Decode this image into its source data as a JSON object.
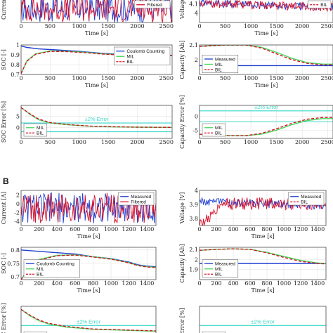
{
  "section_labels": [
    {
      "text": "B"
    }
  ],
  "colors": {
    "measured": "#1f3fd0",
    "filtered_red": "#d8102a",
    "mil": "#49d65a",
    "bil": "#d8102a",
    "error_band": "#35d6c8",
    "axes": "#333333"
  },
  "chart_data": [
    {
      "id": "A-current",
      "type": "line",
      "ylabel": "Current",
      "xlabel": "Time [s]",
      "xlim": [
        0,
        2600
      ],
      "xticks": [
        0,
        500,
        1000,
        1500,
        2000,
        2500
      ],
      "ylim": [
        -1,
        1
      ],
      "yticks": [],
      "legend": [
        {
          "label": "Filtered",
          "color": "#d8102a",
          "dash": false
        }
      ],
      "legend_pos": "top-right",
      "series": [
        {
          "name": "Measured",
          "color": "#1f3fd0",
          "shape": "noise",
          "lo": -1,
          "hi": 1
        },
        {
          "name": "Filtered",
          "color": "#d8102a",
          "shape": "noise",
          "lo": -1,
          "hi": 1
        }
      ]
    },
    {
      "id": "A-voltage",
      "type": "line",
      "ylabel": "Voltage",
      "xlabel": "Time [s]",
      "xlim": [
        0,
        2600
      ],
      "xticks": [
        0,
        500,
        1000,
        1500,
        2000,
        2500
      ],
      "ylim": [
        3.9,
        4.2
      ],
      "yticks": [
        4,
        4.1
      ],
      "legend": [
        {
          "label": "BIL",
          "color": "#d8102a",
          "dash": true
        }
      ],
      "legend_pos": "top-right",
      "series": [
        {
          "name": "Measured",
          "color": "#1f3fd0",
          "shape": "noisy",
          "lo": 4.0,
          "hi": 4.15
        },
        {
          "name": "BIL",
          "color": "#d8102a",
          "shape": "noisy",
          "lo": 4.0,
          "hi": 4.15
        }
      ]
    },
    {
      "id": "A-soc",
      "type": "line",
      "ylabel": "SOC [-]",
      "xlabel": "Time [s]",
      "xlim": [
        0,
        2600
      ],
      "xticks": [
        0,
        500,
        1000,
        1500,
        2000,
        2500
      ],
      "ylim": [
        0.7,
        1.0
      ],
      "yticks": [
        0.7,
        0.8,
        0.9,
        1
      ],
      "legend": [
        {
          "label": "Coulomb Counting",
          "color": "#1f3fd0",
          "dash": false
        },
        {
          "label": "MIL",
          "color": "#49d65a",
          "dash": false
        },
        {
          "label": "BIL",
          "color": "#d8102a",
          "dash": true
        }
      ],
      "legend_pos": "top-right",
      "series": [
        {
          "name": "Coulomb Counting",
          "color": "#1f3fd0",
          "dash": false,
          "x": [
            0,
            100,
            300,
            600,
            1000,
            1400,
            1700,
            2000,
            2300,
            2600
          ],
          "y": [
            0.99,
            0.975,
            0.96,
            0.95,
            0.935,
            0.915,
            0.905,
            0.895,
            0.895,
            0.895
          ]
        },
        {
          "name": "MIL",
          "color": "#49d65a",
          "dash": false,
          "x": [
            0,
            100,
            250,
            500,
            800,
            1100,
            1400,
            1700,
            2000,
            2300,
            2600
          ],
          "y": [
            0.71,
            0.84,
            0.91,
            0.94,
            0.935,
            0.925,
            0.91,
            0.9,
            0.893,
            0.893,
            0.893
          ]
        },
        {
          "name": "BIL",
          "color": "#d8102a",
          "dash": true,
          "x": [
            0,
            100,
            250,
            500,
            800,
            1100,
            1400,
            1700,
            2000,
            2300,
            2600
          ],
          "y": [
            0.71,
            0.835,
            0.905,
            0.935,
            0.932,
            0.922,
            0.908,
            0.898,
            0.892,
            0.892,
            0.892
          ]
        }
      ]
    },
    {
      "id": "A-capacity",
      "type": "line",
      "ylabel": "Capacity [Ah]",
      "xlabel": "Time [s]",
      "xlim": [
        0,
        2600
      ],
      "xticks": [
        0,
        500,
        1000,
        1500,
        2000,
        2500
      ],
      "ylim": [
        1.9,
        2.1
      ],
      "yticks": [
        2,
        2.1
      ],
      "legend": [
        {
          "label": "Measured",
          "color": "#1f3fd0",
          "dash": false
        },
        {
          "label": "MIL",
          "color": "#49d65a",
          "dash": false
        },
        {
          "label": "BIL",
          "color": "#d8102a",
          "dash": true
        }
      ],
      "legend_pos": "center-left",
      "series": [
        {
          "name": "Measured",
          "color": "#1f3fd0",
          "dash": false,
          "x": [
            0,
            2600
          ],
          "y": [
            1.96,
            1.96
          ]
        },
        {
          "name": "MIL",
          "color": "#49d65a",
          "dash": false,
          "x": [
            0,
            500,
            900,
            1200,
            1500,
            1800,
            2100,
            2400,
            2600
          ],
          "y": [
            2.09,
            2.1,
            2.1,
            2.085,
            2.05,
            2.01,
            1.98,
            1.97,
            1.97
          ]
        },
        {
          "name": "BIL",
          "color": "#d8102a",
          "dash": true,
          "x": [
            0,
            500,
            900,
            1200,
            1500,
            1800,
            2100,
            2400,
            2600
          ],
          "y": [
            2.09,
            2.1,
            2.1,
            2.08,
            2.04,
            2.0,
            1.975,
            1.965,
            1.965
          ]
        }
      ]
    },
    {
      "id": "A-soc-error",
      "type": "line",
      "ylabel": "SOC Error [%]",
      "xlabel": "",
      "xlim": [
        0,
        2600
      ],
      "xticks": [
        0,
        500,
        1000,
        1500,
        2000,
        2500
      ],
      "ylim": [
        -5,
        10
      ],
      "yticks": [
        0,
        5
      ],
      "annotation": "±2% Error",
      "legend": [
        {
          "label": "MIL",
          "color": "#49d65a",
          "dash": false
        },
        {
          "label": "BIL",
          "color": "#d8102a",
          "dash": true
        }
      ],
      "legend_pos": "bottom-left",
      "bands": [
        2,
        -2
      ],
      "series": [
        {
          "name": "MIL",
          "color": "#49d65a",
          "dash": false,
          "x": [
            0,
            150,
            300,
            500,
            800,
            1200,
            1600,
            2000,
            2600
          ],
          "y": [
            9,
            6,
            3.5,
            2,
            1.2,
            0.5,
            0.2,
            0.1,
            0
          ]
        },
        {
          "name": "BIL",
          "color": "#d8102a",
          "dash": true,
          "x": [
            0,
            150,
            300,
            500,
            800,
            1200,
            1600,
            2000,
            2600
          ],
          "y": [
            9,
            6.2,
            3.8,
            2.2,
            1.3,
            0.6,
            0.3,
            0.1,
            0
          ]
        }
      ]
    },
    {
      "id": "A-capacity-error",
      "type": "line",
      "ylabel": "Capacity Error [%]",
      "xlabel": "",
      "xlim": [
        0,
        2600
      ],
      "xticks": [
        0,
        500,
        1000,
        1500,
        2000,
        2500
      ],
      "ylim": [
        -8,
        4
      ],
      "yticks": [
        -5,
        0
      ],
      "annotation": "±2% Error",
      "legend": [
        {
          "label": "MIL",
          "color": "#49d65a",
          "dash": false
        },
        {
          "label": "BIL",
          "color": "#d8102a",
          "dash": true
        }
      ],
      "legend_pos": "bottom-left",
      "bands": [
        2,
        -2
      ],
      "series": [
        {
          "name": "MIL",
          "color": "#49d65a",
          "dash": false,
          "x": [
            0,
            500,
            900,
            1200,
            1500,
            1800,
            2100,
            2400,
            2600
          ],
          "y": [
            -6.5,
            -7,
            -7,
            -6.5,
            -5,
            -3,
            -1.5,
            -0.8,
            -0.8
          ]
        },
        {
          "name": "BIL",
          "color": "#d8102a",
          "dash": true,
          "x": [
            0,
            500,
            900,
            1200,
            1500,
            1800,
            2100,
            2400,
            2600
          ],
          "y": [
            -6.5,
            -7,
            -7,
            -6.2,
            -4.5,
            -2.5,
            -1.0,
            -0.4,
            -0.4
          ]
        }
      ]
    },
    {
      "id": "B-current",
      "type": "line",
      "ylabel": "Current [A]",
      "xlabel": "Time [s]",
      "xlim": [
        0,
        1500
      ],
      "xticks": [
        0,
        200,
        400,
        600,
        800,
        1000,
        1200,
        1400
      ],
      "ylim": [
        -5,
        3
      ],
      "yticks": [
        -4,
        -2,
        0,
        2
      ],
      "legend": [
        {
          "label": "Measured",
          "color": "#1f3fd0",
          "dash": false
        },
        {
          "label": "Filtered",
          "color": "#d8102a",
          "dash": false
        }
      ],
      "legend_pos": "top-right",
      "series": [
        {
          "name": "Measured",
          "color": "#1f3fd0",
          "shape": "noise",
          "lo": -4.5,
          "hi": 2.5
        },
        {
          "name": "Filtered",
          "color": "#d8102a",
          "shape": "noise",
          "lo": -4.5,
          "hi": 2.5
        }
      ]
    },
    {
      "id": "B-voltage",
      "type": "line",
      "ylabel": "Voltage [V]",
      "xlabel": "Time [s]",
      "xlim": [
        0,
        1500
      ],
      "xticks": [
        0,
        200,
        400,
        600,
        800,
        1000,
        1200,
        1400
      ],
      "ylim": [
        3.75,
        4.0
      ],
      "yticks": [
        3.8,
        3.9,
        4
      ],
      "legend": [
        {
          "label": "Measured",
          "color": "#1f3fd0",
          "dash": false
        },
        {
          "label": "BIL",
          "color": "#d8102a",
          "dash": true
        }
      ],
      "legend_pos": "top-right",
      "series": [
        {
          "name": "Measured",
          "color": "#1f3fd0",
          "shape": "noisy",
          "lo": 3.85,
          "hi": 3.95
        },
        {
          "name": "BIL",
          "color": "#d8102a",
          "shape": "noisyrise",
          "lo": 3.8,
          "hi": 3.95
        }
      ]
    },
    {
      "id": "B-soc",
      "type": "line",
      "ylabel": "SOC [-]",
      "xlabel": "Time [s]",
      "xlim": [
        0,
        1500
      ],
      "xticks": [
        0,
        200,
        400,
        600,
        800,
        1000,
        1200,
        1400
      ],
      "ylim": [
        0.69,
        0.81
      ],
      "yticks": [
        0.7,
        0.75,
        0.8
      ],
      "legend": [
        {
          "label": "Coulomb Counting",
          "color": "#1f3fd0",
          "dash": false
        },
        {
          "label": "MIL",
          "color": "#49d65a",
          "dash": false
        },
        {
          "label": "BIL",
          "color": "#d8102a",
          "dash": true
        }
      ],
      "legend_pos": "bottom-left",
      "series": [
        {
          "name": "Coulomb Counting",
          "color": "#1f3fd0",
          "dash": false,
          "x": [
            0,
            200,
            400,
            600,
            800,
            1000,
            1200,
            1300,
            1400,
            1500
          ],
          "y": [
            0.8,
            0.795,
            0.79,
            0.785,
            0.775,
            0.768,
            0.755,
            0.745,
            0.74,
            0.738
          ]
        },
        {
          "name": "MIL",
          "color": "#49d65a",
          "dash": false,
          "x": [
            0,
            100,
            200,
            400,
            600,
            800,
            1000,
            1200,
            1300,
            1400,
            1500
          ],
          "y": [
            0.69,
            0.74,
            0.765,
            0.78,
            0.782,
            0.775,
            0.767,
            0.753,
            0.743,
            0.738,
            0.736
          ]
        },
        {
          "name": "BIL",
          "color": "#d8102a",
          "dash": true,
          "x": [
            0,
            100,
            200,
            400,
            600,
            800,
            1000,
            1200,
            1300,
            1400,
            1500
          ],
          "y": [
            0.69,
            0.738,
            0.762,
            0.779,
            0.781,
            0.774,
            0.766,
            0.752,
            0.742,
            0.737,
            0.735
          ]
        }
      ]
    },
    {
      "id": "B-capacity",
      "type": "line",
      "ylabel": "Capacity [Ah]",
      "xlabel": "Time [s]",
      "xlim": [
        0,
        1500
      ],
      "xticks": [
        0,
        200,
        400,
        600,
        800,
        1000,
        1200,
        1400
      ],
      "ylim": [
        1.8,
        2.12
      ],
      "yticks": [
        1.9,
        2,
        2.1
      ],
      "legend": [
        {
          "label": "Measured",
          "color": "#1f3fd0",
          "dash": false
        },
        {
          "label": "MIL",
          "color": "#49d65a",
          "dash": false
        },
        {
          "label": "BIL",
          "color": "#d8102a",
          "dash": true
        }
      ],
      "legend_pos": "bottom-left",
      "series": [
        {
          "name": "Measured",
          "color": "#1f3fd0",
          "dash": false,
          "x": [
            0,
            1500
          ],
          "y": [
            1.96,
            1.96
          ]
        },
        {
          "name": "MIL",
          "color": "#49d65a",
          "dash": false,
          "x": [
            0,
            200,
            400,
            600,
            800,
            1000,
            1200,
            1400,
            1500
          ],
          "y": [
            2.09,
            2.1,
            2.105,
            2.1,
            2.07,
            2.03,
            1.99,
            1.965,
            1.96
          ]
        },
        {
          "name": "BIL",
          "color": "#d8102a",
          "dash": true,
          "x": [
            0,
            200,
            400,
            600,
            800,
            1000,
            1200,
            1400,
            1500
          ],
          "y": [
            2.09,
            2.1,
            2.105,
            2.1,
            2.065,
            2.02,
            1.98,
            1.96,
            1.955
          ]
        }
      ]
    },
    {
      "id": "B-soc-error",
      "type": "line",
      "ylabel": "SOC Error [%]",
      "xlabel": "",
      "xlim": [
        0,
        1500
      ],
      "xticks": [],
      "ylim": [
        -3,
        8
      ],
      "yticks": [],
      "annotation": "±2% Error",
      "legend": [
        {
          "label": "MIL",
          "color": "#49d65a",
          "dash": false
        }
      ],
      "legend_pos": "bottom-left",
      "bands": [
        2,
        -2
      ],
      "series": [
        {
          "name": "MIL",
          "color": "#49d65a",
          "dash": false,
          "x": [
            0,
            100,
            200,
            300,
            500,
            800,
            1500
          ],
          "y": [
            7,
            5,
            3.5,
            2.5,
            1.5,
            0.8,
            0.2
          ]
        },
        {
          "name": "BIL",
          "color": "#d8102a",
          "dash": true,
          "x": [
            0,
            100,
            200,
            300,
            500,
            800,
            1500
          ],
          "y": [
            7,
            5.2,
            3.7,
            2.7,
            1.7,
            0.9,
            0.3
          ]
        }
      ]
    },
    {
      "id": "B-capacity-error",
      "type": "line",
      "ylabel": "y Error [%]",
      "xlabel": "",
      "xlim": [
        0,
        1500
      ],
      "xticks": [],
      "ylim": [
        -3,
        8
      ],
      "yticks": [],
      "annotation": "±2% Error",
      "legend": [
        {
          "label": "MIL",
          "color": "#49d65a",
          "dash": false
        }
      ],
      "legend_pos": "bottom-left",
      "bands": [
        2,
        -2
      ],
      "series": []
    }
  ]
}
